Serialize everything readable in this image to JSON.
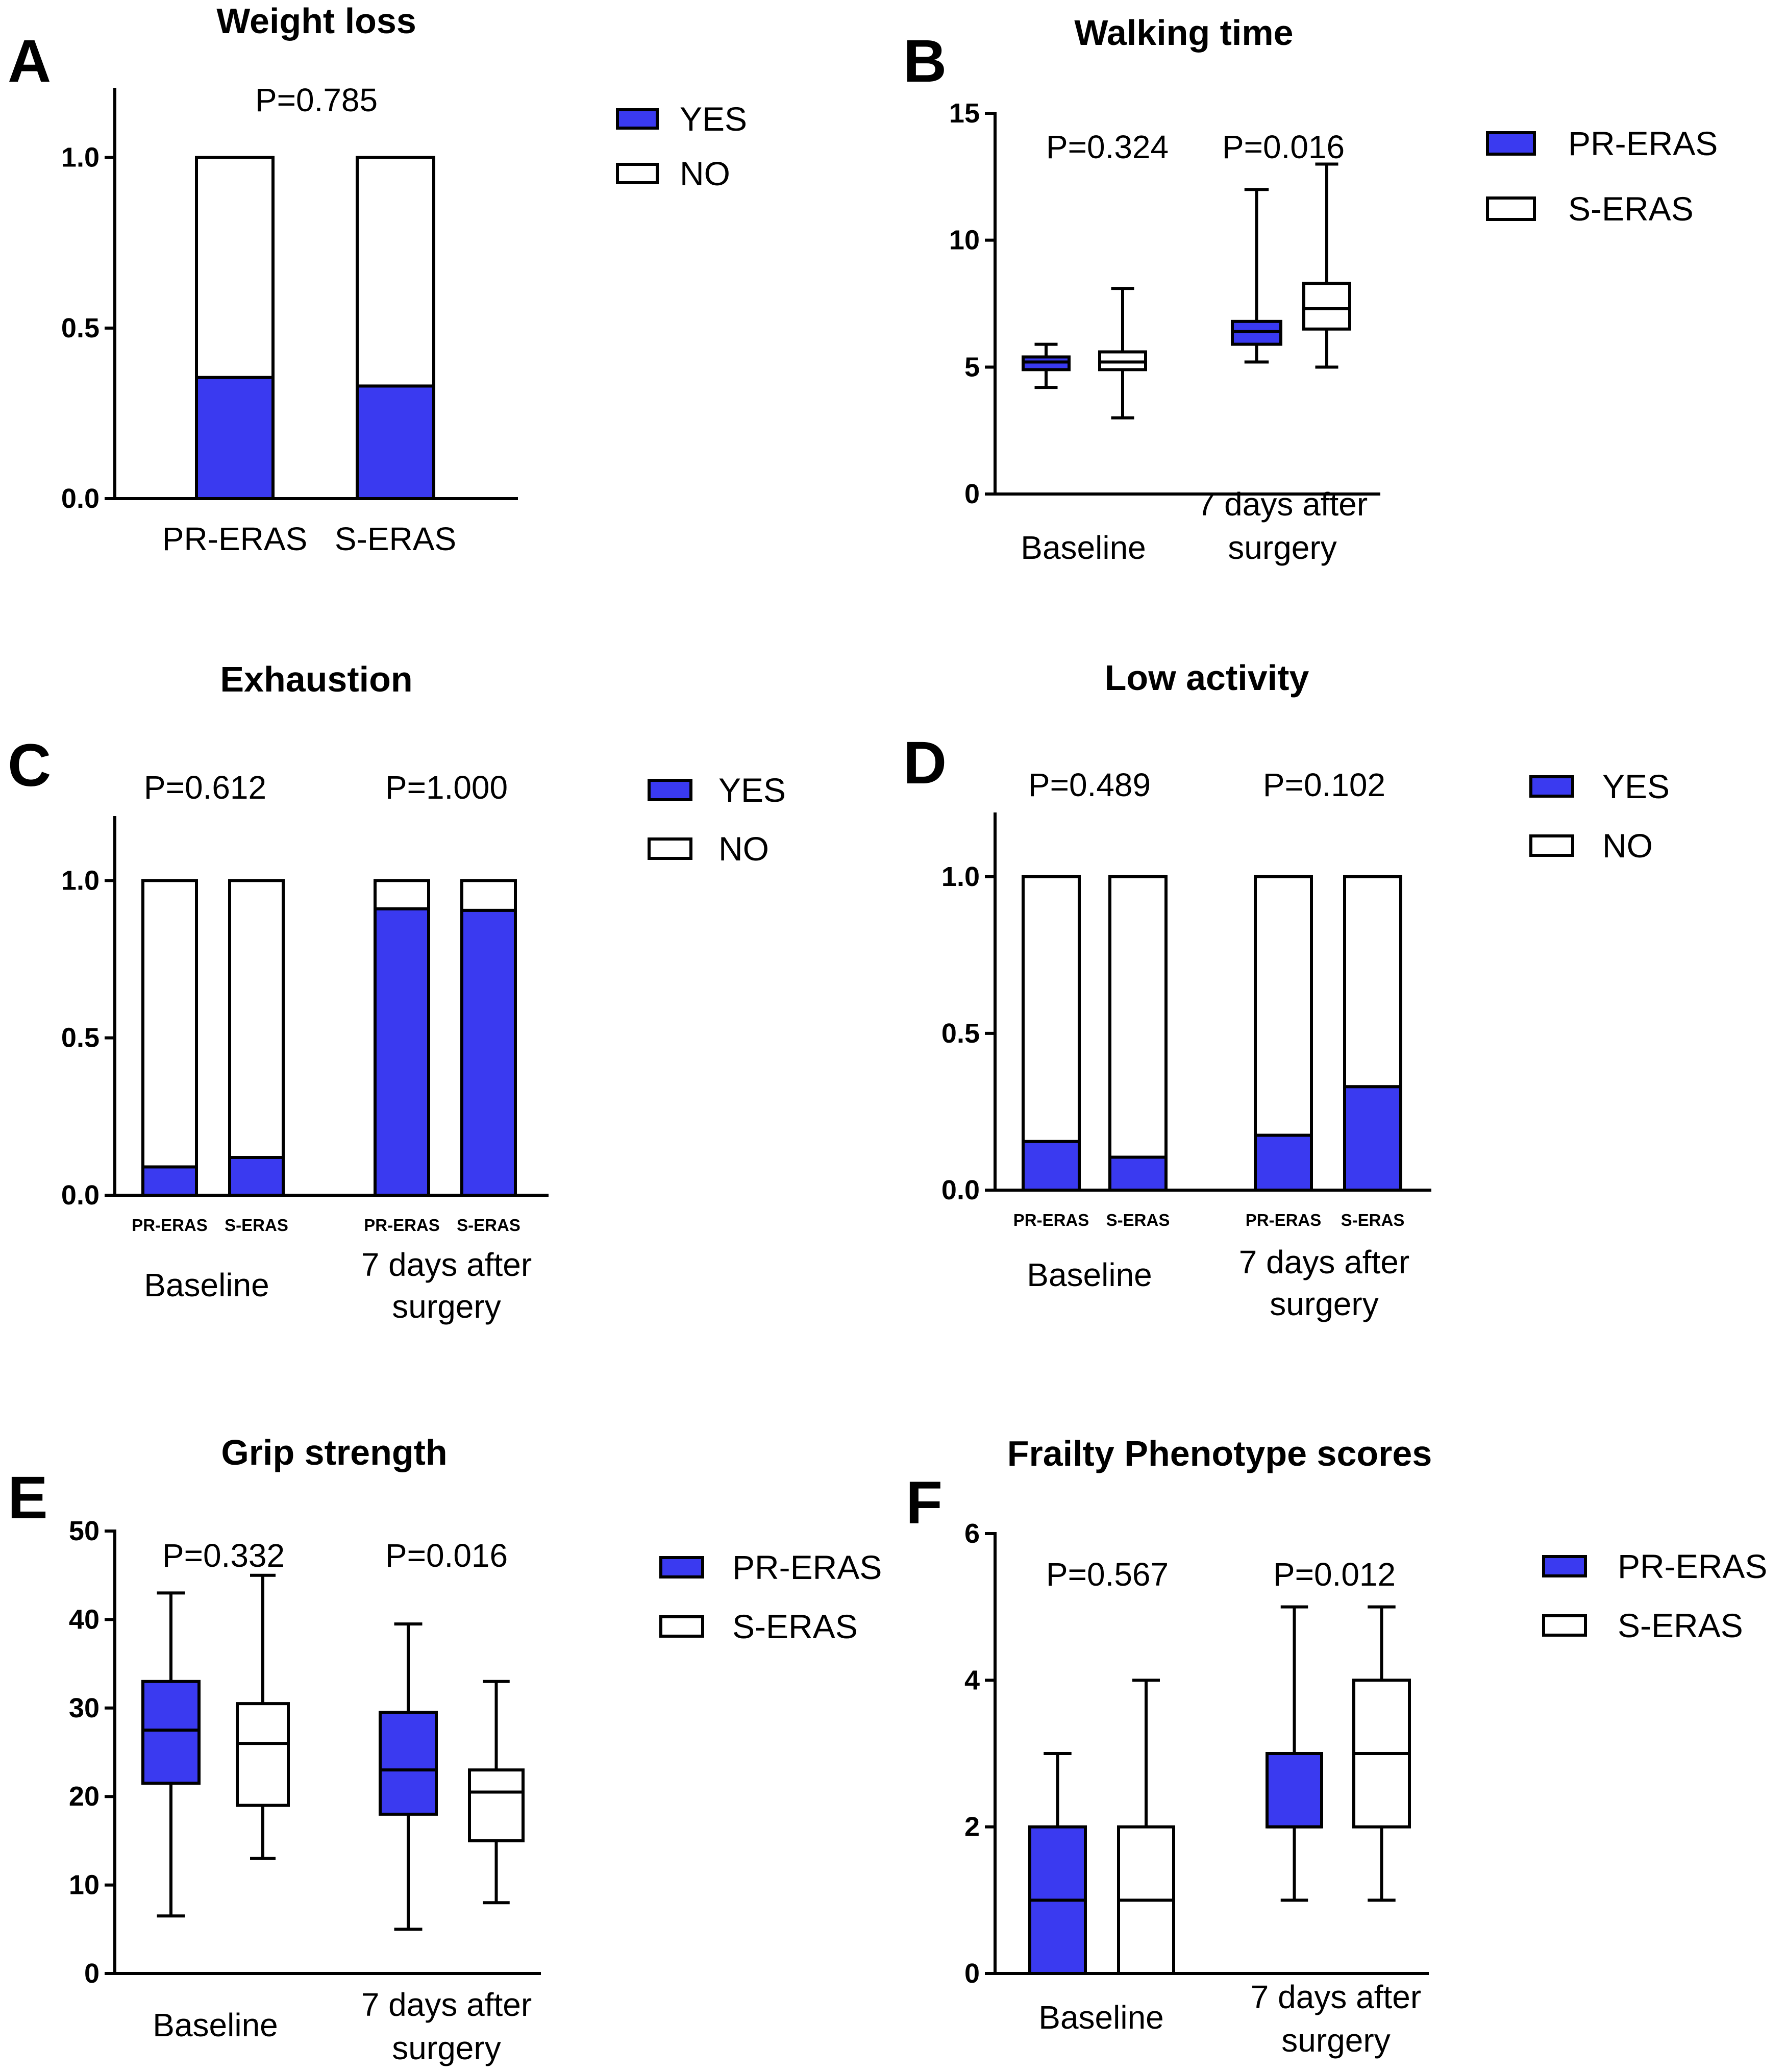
{
  "colors": {
    "yes": "#3a3af0",
    "no": "#ffffff",
    "stroke": "#000000"
  },
  "chart_data": [
    {
      "id": "A",
      "type": "bar",
      "stacked": true,
      "title": "Weight loss",
      "yticks": [
        "0.0",
        "0.5",
        "1.0"
      ],
      "ylim": [
        0,
        1.2
      ],
      "groups": [
        {
          "label": "",
          "pvalue": "P=0.785",
          "bars": [
            {
              "label": "PR-ERAS",
              "yes": 0.355
            },
            {
              "label": "S-ERAS",
              "yes": 0.33
            }
          ]
        }
      ],
      "legend": [
        "YES",
        "NO"
      ]
    },
    {
      "id": "B",
      "type": "box",
      "title": "Walking time",
      "yticks": [
        "0",
        "5",
        "10",
        "15"
      ],
      "ylim": [
        0,
        15
      ],
      "groups": [
        {
          "label": [
            "Baseline"
          ],
          "pvalue": "P=0.324",
          "boxes": [
            {
              "series": "PR-ERAS",
              "min": 4.2,
              "q1": 4.9,
              "median": 5.2,
              "q3": 5.4,
              "max": 5.9
            },
            {
              "series": "S-ERAS",
              "min": 3.0,
              "q1": 4.9,
              "median": 5.2,
              "q3": 5.6,
              "max": 8.1
            }
          ]
        },
        {
          "label": [
            "7 days after",
            "surgery"
          ],
          "pvalue": "P=0.016",
          "boxes": [
            {
              "series": "PR-ERAS",
              "min": 5.2,
              "q1": 5.9,
              "median": 6.4,
              "q3": 6.8,
              "max": 12.0
            },
            {
              "series": "S-ERAS",
              "min": 5.0,
              "q1": 6.5,
              "median": 7.3,
              "q3": 8.3,
              "max": 13.0
            }
          ]
        }
      ],
      "legend": [
        "PR-ERAS",
        "S-ERAS"
      ]
    },
    {
      "id": "C",
      "type": "bar",
      "stacked": true,
      "title": "Exhaustion",
      "yticks": [
        "0.0",
        "0.5",
        "1.0"
      ],
      "ylim": [
        0,
        1.2
      ],
      "groups": [
        {
          "label": [
            "Baseline"
          ],
          "pvalue": "P=0.612",
          "bars": [
            {
              "label": "PR-ERAS",
              "yes": 0.09
            },
            {
              "label": "S-ERAS",
              "yes": 0.12
            }
          ]
        },
        {
          "label": [
            "7 days after",
            "surgery"
          ],
          "pvalue": "P=1.000",
          "bars": [
            {
              "label": "PR-ERAS",
              "yes": 0.91
            },
            {
              "label": "S-ERAS",
              "yes": 0.905
            }
          ]
        }
      ],
      "legend": [
        "YES",
        "NO"
      ]
    },
    {
      "id": "D",
      "type": "bar",
      "stacked": true,
      "title": "Low activity",
      "yticks": [
        "0.0",
        "0.5",
        "1.0"
      ],
      "ylim": [
        0,
        1.2
      ],
      "groups": [
        {
          "label": [
            "Baseline"
          ],
          "pvalue": "P=0.489",
          "bars": [
            {
              "label": "PR-ERAS",
              "yes": 0.155
            },
            {
              "label": "S-ERAS",
              "yes": 0.105
            }
          ]
        },
        {
          "label": [
            "7 days after",
            "surgery"
          ],
          "pvalue": "P=0.102",
          "bars": [
            {
              "label": "PR-ERAS",
              "yes": 0.175
            },
            {
              "label": "S-ERAS",
              "yes": 0.33
            }
          ]
        }
      ],
      "legend": [
        "YES",
        "NO"
      ]
    },
    {
      "id": "E",
      "type": "box",
      "title": "Grip strength",
      "yticks": [
        "0",
        "10",
        "20",
        "30",
        "40",
        "50"
      ],
      "ylim": [
        0,
        50
      ],
      "groups": [
        {
          "label": [
            "Baseline"
          ],
          "pvalue": "P=0.332",
          "boxes": [
            {
              "series": "PR-ERAS",
              "min": 6.5,
              "q1": 21.5,
              "median": 27.5,
              "q3": 33.0,
              "max": 43.0
            },
            {
              "series": "S-ERAS",
              "min": 13.0,
              "q1": 19.0,
              "median": 26.0,
              "q3": 30.5,
              "max": 45.0
            }
          ]
        },
        {
          "label": [
            "7 days after",
            "surgery"
          ],
          "pvalue": "P=0.016",
          "boxes": [
            {
              "series": "PR-ERAS",
              "min": 5.0,
              "q1": 18.0,
              "median": 23.0,
              "q3": 29.5,
              "max": 39.5
            },
            {
              "series": "S-ERAS",
              "min": 8.0,
              "q1": 15.0,
              "median": 20.5,
              "q3": 23.0,
              "max": 33.0
            }
          ]
        }
      ],
      "legend": [
        "PR-ERAS",
        "S-ERAS"
      ]
    },
    {
      "id": "F",
      "type": "box",
      "title": "Frailty Phenotype  scores",
      "yticks": [
        "0",
        "2",
        "4",
        "6"
      ],
      "ylim": [
        0,
        6
      ],
      "groups": [
        {
          "label": [
            "Baseline"
          ],
          "pvalue": "P=0.567",
          "boxes": [
            {
              "series": "PR-ERAS",
              "min": 0,
              "q1": 0,
              "median": 1,
              "q3": 2,
              "max": 3
            },
            {
              "series": "S-ERAS",
              "min": 0,
              "q1": 0,
              "median": 1,
              "q3": 2,
              "max": 4
            }
          ]
        },
        {
          "label": [
            "7 days after",
            "surgery"
          ],
          "pvalue": "P=0.012",
          "boxes": [
            {
              "series": "PR-ERAS",
              "min": 1,
              "q1": 2,
              "median": 2,
              "q3": 3,
              "max": 5
            },
            {
              "series": "S-ERAS",
              "min": 1,
              "q1": 2,
              "median": 3,
              "q3": 4,
              "max": 5
            }
          ]
        }
      ],
      "legend": [
        "PR-ERAS",
        "S-ERAS"
      ]
    }
  ]
}
